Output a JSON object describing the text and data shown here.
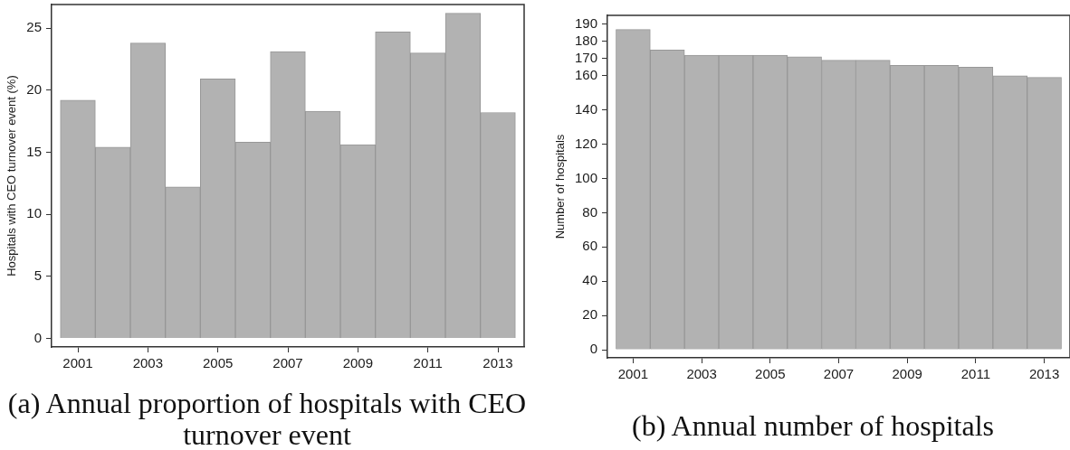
{
  "chart_data": [
    {
      "type": "bar",
      "title": "(a) Annual proportion of hospitals with CEO turnover event",
      "ylabel": "Hospitals with CEO turnover event (%)",
      "x": [
        2001,
        2002,
        2003,
        2004,
        2005,
        2006,
        2007,
        2008,
        2009,
        2010,
        2011,
        2012,
        2013
      ],
      "values": [
        19.2,
        15.4,
        23.8,
        12.2,
        20.9,
        15.8,
        23.1,
        18.3,
        15.6,
        24.7,
        23.0,
        26.2,
        18.2
      ],
      "color": "#b2b2b2",
      "xlim": [
        2000.25,
        2013.75
      ],
      "xticks": [
        2001,
        2003,
        2005,
        2007,
        2009,
        2011,
        2013
      ],
      "ylim": [
        -0.7,
        26.9
      ],
      "yticks": [
        0,
        5,
        10,
        15,
        20,
        25
      ]
    },
    {
      "type": "bar",
      "title": "(b) Annual number of hospitals",
      "ylabel": "Number of hospitals",
      "x": [
        2001,
        2002,
        2003,
        2004,
        2005,
        2006,
        2007,
        2008,
        2009,
        2010,
        2011,
        2012,
        2013
      ],
      "values": [
        187,
        175,
        172,
        172,
        172,
        171,
        169,
        169,
        166,
        166,
        165,
        160,
        159
      ],
      "color": "#b2b2b2",
      "xlim": [
        2000.25,
        2013.75
      ],
      "xticks": [
        2001,
        2003,
        2005,
        2007,
        2009,
        2011,
        2013
      ],
      "ylim": [
        -4.7,
        195.2
      ],
      "yticks": [
        0,
        20,
        40,
        60,
        80,
        100,
        120,
        140,
        160,
        170,
        180,
        190
      ]
    }
  ]
}
